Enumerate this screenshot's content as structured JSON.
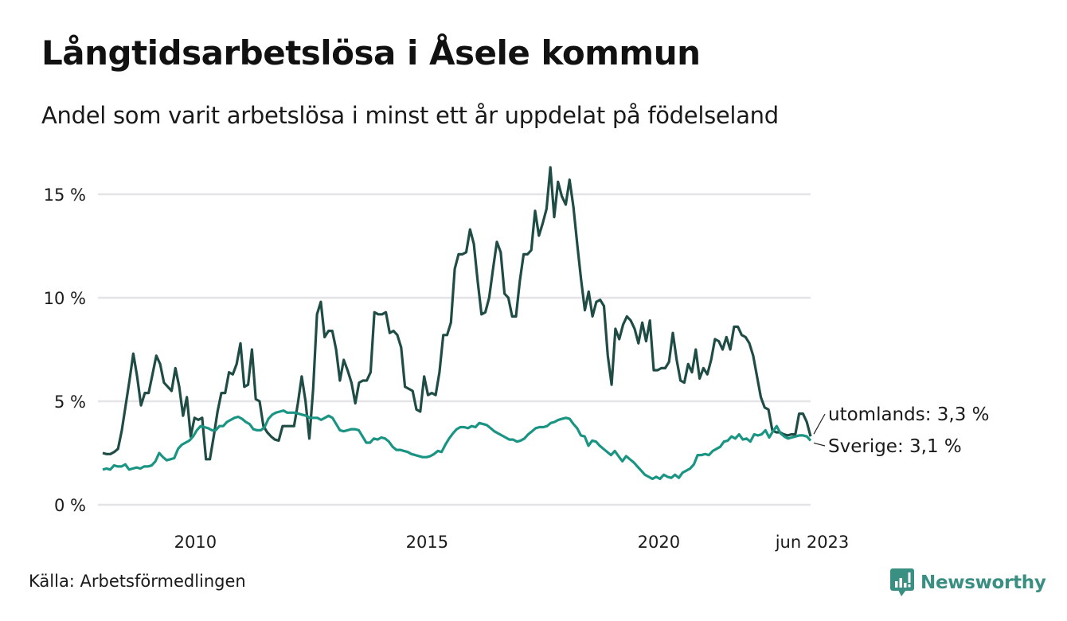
{
  "title": "Långtidsarbetslösa i Åsele kommun",
  "subtitle": "Andel som varit arbetslösa i minst ett år uppdelat på födelseland",
  "source": "Källa: Arbetsförmedlingen",
  "logo": {
    "text": "Newsworthy",
    "icon": "bar-chart-speech-icon",
    "color": "#3a8f83"
  },
  "chart_data": {
    "type": "line",
    "title": "Långtidsarbetslösa i Åsele kommun",
    "xlabel": "",
    "ylabel": "",
    "x_start": "2008-01",
    "x_end": "2023-06",
    "frequency": "monthly",
    "xlim": [
      2008.0,
      2023.4167
    ],
    "ylim": [
      0,
      16.5
    ],
    "y_ticks": [
      {
        "value": 0,
        "label": "0 %"
      },
      {
        "value": 5,
        "label": "5 %"
      },
      {
        "value": 10,
        "label": "10 %"
      },
      {
        "value": 15,
        "label": "15 %"
      }
    ],
    "x_ticks": [
      {
        "value": 2010.0,
        "label": "2010"
      },
      {
        "value": 2015.0,
        "label": "2015"
      },
      {
        "value": 2020.0,
        "label": "2020"
      },
      {
        "value": 2023.4167,
        "label": "jun 2023"
      }
    ],
    "grid": true,
    "legend": "direct-labels-right",
    "series": [
      {
        "name": "utomlands",
        "end_label": "utomlands: 3,3 %",
        "color": "#1f4d45",
        "values": [
          2.5,
          2.45,
          2.45,
          2.55,
          2.7,
          3.6,
          4.8,
          6.0,
          7.3,
          6.2,
          4.8,
          5.4,
          5.4,
          6.3,
          7.2,
          6.8,
          5.9,
          5.7,
          5.5,
          6.6,
          5.7,
          4.3,
          5.2,
          3.3,
          4.2,
          4.1,
          4.2,
          2.2,
          2.2,
          3.3,
          4.5,
          5.4,
          5.4,
          6.4,
          6.3,
          6.8,
          7.8,
          5.7,
          5.8,
          7.5,
          5.1,
          5.0,
          3.8,
          3.5,
          3.3,
          3.15,
          3.1,
          3.8,
          3.8,
          3.8,
          3.8,
          4.9,
          6.2,
          5.0,
          3.2,
          5.6,
          9.2,
          9.8,
          8.1,
          8.4,
          8.4,
          7.5,
          6.0,
          7.0,
          6.5,
          5.9,
          4.9,
          5.9,
          6.0,
          6.0,
          6.4,
          9.3,
          9.2,
          9.2,
          9.3,
          8.3,
          8.4,
          8.2,
          7.6,
          5.7,
          5.6,
          5.5,
          4.6,
          4.5,
          6.2,
          5.3,
          5.4,
          5.3,
          6.4,
          8.2,
          8.2,
          8.8,
          11.4,
          12.1,
          12.1,
          12.2,
          13.3,
          12.6,
          10.8,
          9.2,
          9.3,
          10.0,
          11.4,
          12.7,
          12.2,
          10.2,
          10.0,
          9.1,
          9.1,
          10.8,
          12.1,
          12.1,
          12.3,
          14.2,
          13.0,
          13.6,
          14.3,
          16.3,
          13.9,
          15.6,
          14.9,
          14.5,
          15.7,
          14.4,
          12.6,
          10.9,
          9.4,
          10.3,
          9.1,
          9.8,
          9.9,
          9.6,
          7.2,
          5.8,
          8.5,
          8.0,
          8.7,
          9.1,
          8.9,
          8.5,
          7.8,
          8.8,
          7.9,
          8.9,
          6.5,
          6.5,
          6.6,
          6.6,
          6.9,
          8.3,
          7.0,
          6.0,
          5.9,
          6.8,
          6.4,
          7.5,
          6.1,
          6.6,
          6.3,
          7.0,
          8.0,
          7.9,
          7.5,
          8.1,
          7.5,
          8.6,
          8.6,
          8.2,
          8.1,
          7.8,
          7.2,
          6.2,
          5.2,
          4.7,
          4.6,
          3.6,
          3.5,
          3.5,
          3.4,
          3.35,
          3.4,
          3.4,
          4.4,
          4.4,
          4.0,
          3.3
        ]
      },
      {
        "name": "Sverige",
        "end_label": "Sverige: 3,1 %",
        "color": "#1a9483",
        "values": [
          1.7,
          1.75,
          1.7,
          1.9,
          1.85,
          1.85,
          1.95,
          1.7,
          1.75,
          1.8,
          1.75,
          1.85,
          1.85,
          1.9,
          2.1,
          2.5,
          2.3,
          2.15,
          2.2,
          2.25,
          2.7,
          2.9,
          3.0,
          3.1,
          3.3,
          3.6,
          3.8,
          3.75,
          3.7,
          3.6,
          3.6,
          3.8,
          3.8,
          4.0,
          4.1,
          4.2,
          4.25,
          4.15,
          4.0,
          3.9,
          3.65,
          3.6,
          3.6,
          3.75,
          4.15,
          4.35,
          4.45,
          4.5,
          4.55,
          4.45,
          4.45,
          4.45,
          4.4,
          4.35,
          4.3,
          4.2,
          4.2,
          4.2,
          4.1,
          4.2,
          4.3,
          4.2,
          3.9,
          3.6,
          3.55,
          3.6,
          3.65,
          3.65,
          3.6,
          3.3,
          3.0,
          3.0,
          3.2,
          3.15,
          3.25,
          3.2,
          3.05,
          2.8,
          2.65,
          2.65,
          2.6,
          2.55,
          2.45,
          2.4,
          2.35,
          2.3,
          2.3,
          2.35,
          2.45,
          2.6,
          2.55,
          2.9,
          3.2,
          3.45,
          3.65,
          3.75,
          3.75,
          3.7,
          3.8,
          3.75,
          3.95,
          3.9,
          3.85,
          3.7,
          3.55,
          3.45,
          3.35,
          3.25,
          3.15,
          3.15,
          3.05,
          3.1,
          3.2,
          3.4,
          3.55,
          3.7,
          3.75,
          3.75,
          3.8,
          3.95,
          4.0,
          4.1,
          4.15,
          4.2,
          4.15,
          3.9,
          3.7,
          3.35,
          3.3,
          2.85,
          3.1,
          3.05,
          2.85,
          2.7,
          2.55,
          2.4,
          2.6,
          2.35,
          2.1,
          2.35,
          2.2,
          2.05,
          1.85,
          1.65,
          1.45,
          1.35,
          1.25,
          1.35,
          1.25,
          1.45,
          1.35,
          1.3,
          1.45,
          1.3,
          1.55,
          1.65,
          1.75,
          1.95,
          2.4,
          2.4,
          2.45,
          2.4,
          2.6,
          2.7,
          2.8,
          3.05,
          3.1,
          3.3,
          3.2,
          3.4,
          3.15,
          3.2,
          3.05,
          3.4,
          3.35,
          3.4,
          3.6,
          3.25,
          3.55,
          3.8,
          3.45,
          3.3,
          3.2,
          3.25,
          3.3,
          3.35,
          3.35,
          3.3,
          3.1
        ]
      }
    ]
  }
}
